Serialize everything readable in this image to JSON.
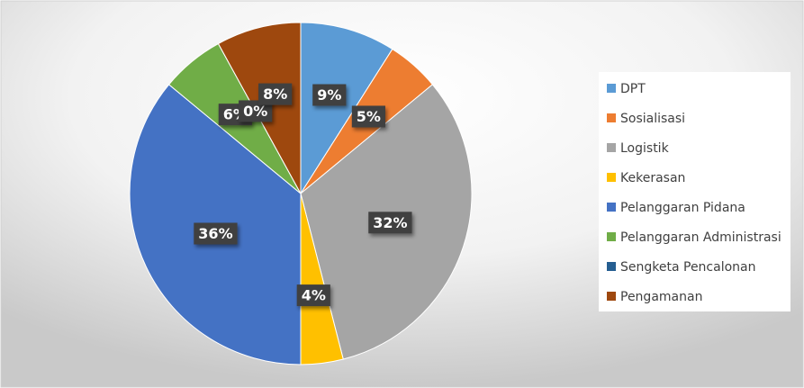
{
  "chart_data": {
    "type": "pie",
    "categories": [
      "DPT",
      "Sosialisasi",
      "Logistik",
      "Kekerasan",
      "Pelanggaran Pidana",
      "Pelanggaran Administrasi",
      "Sengketa Pencalonan",
      "Pengamanan"
    ],
    "values": [
      9,
      5,
      32,
      4,
      36,
      6,
      0,
      8
    ],
    "value_labels": [
      "9%",
      "5%",
      "32%",
      "4%",
      "36%",
      "6%",
      "0%",
      "8%"
    ],
    "colors": [
      "#5b9bd5",
      "#ed7d31",
      "#a5a5a5",
      "#ffc000",
      "#4472c4",
      "#70ad47",
      "#255e91",
      "#9e480e"
    ],
    "legend": "right"
  }
}
